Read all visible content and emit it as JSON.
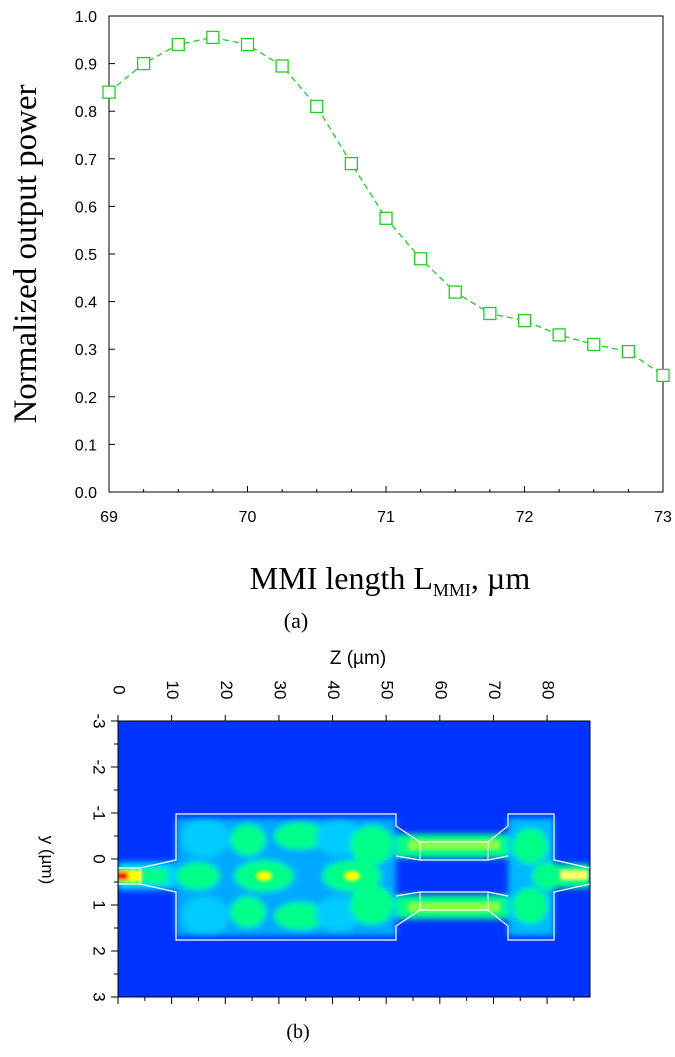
{
  "chart_data": [
    {
      "type": "line",
      "panel_label": "(a)",
      "ylabel": "Normalized output power",
      "xlabel": {
        "main": "MMI length L",
        "subscript": "MMI",
        "unit": ", µm"
      },
      "xlim": [
        69,
        73
      ],
      "ylim": [
        0.0,
        1.0
      ],
      "x_ticks": [
        "69",
        "70",
        "71",
        "72",
        "73"
      ],
      "y_ticks": [
        "0.0",
        "0.1",
        "0.2",
        "0.3",
        "0.4",
        "0.5",
        "0.6",
        "0.7",
        "0.8",
        "0.9",
        "1.0"
      ],
      "grid": false,
      "marker": "square",
      "line_style": "dashed",
      "color": "#22cc22",
      "series": [
        {
          "x": [
            69.0,
            69.25,
            69.5,
            69.75,
            70.0,
            70.25,
            70.5,
            70.75,
            71.0,
            71.25,
            71.5,
            71.75,
            72.0,
            72.25,
            72.5,
            72.75,
            73.0
          ],
          "values": [
            0.84,
            0.9,
            0.94,
            0.955,
            0.94,
            0.895,
            0.81,
            0.69,
            0.575,
            0.49,
            0.42,
            0.375,
            0.36,
            0.33,
            0.31,
            0.295,
            0.245
          ]
        }
      ]
    },
    {
      "type": "heatmap",
      "panel_label": "(b)",
      "xlabel": "Z (µm)",
      "ylabel": "y (µm)",
      "x_ticks": [
        "0",
        "10",
        "20",
        "30",
        "40",
        "50",
        "60",
        "70",
        "80"
      ],
      "y_ticks": [
        "-3",
        "-2",
        "-1",
        "0",
        "1",
        "2",
        "3"
      ],
      "xlim": [
        0,
        88
      ],
      "ylim": [
        -3,
        3
      ],
      "colormap": [
        "#0033ff",
        "#00ccff",
        "#00ff88",
        "#ffff00",
        "#ff0000"
      ],
      "background_color": "#0033ff"
    }
  ]
}
